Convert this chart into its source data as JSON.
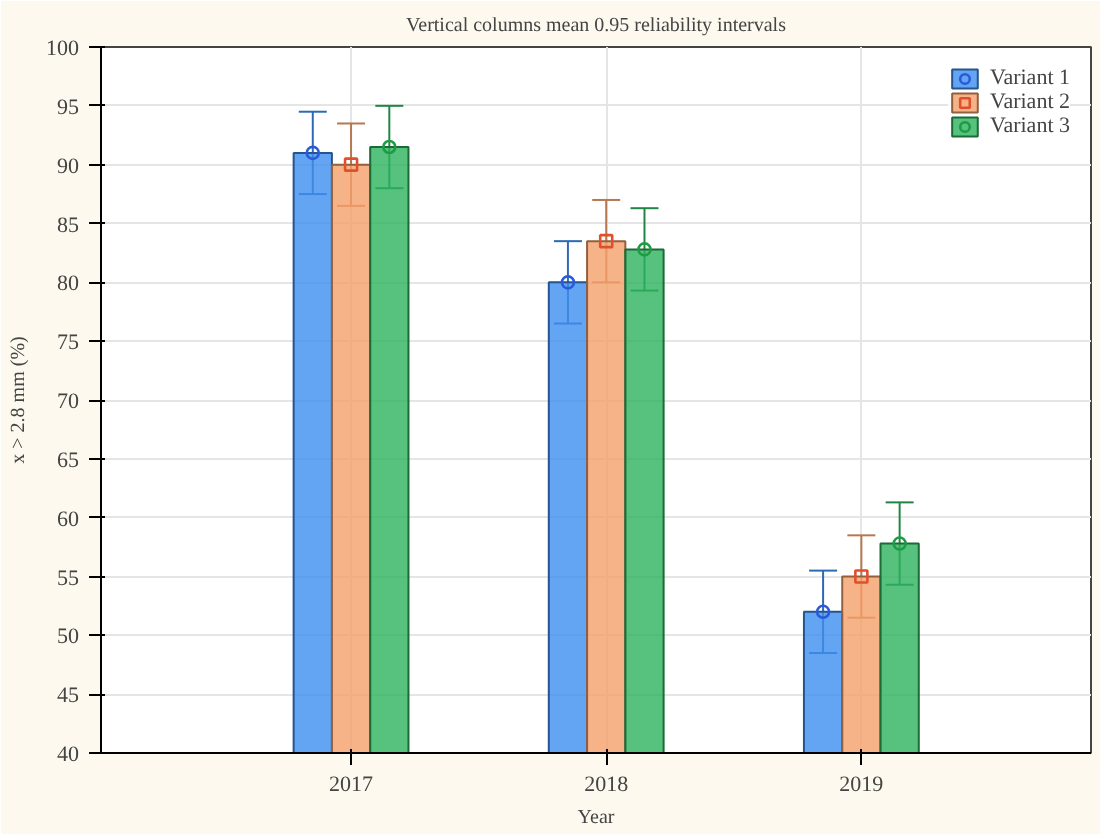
{
  "chart_data": {
    "type": "bar",
    "title": "Vertical columns mean 0.95 reliability intervals",
    "xlabel": "Year",
    "ylabel": "x > 2.8 mm (%)",
    "categories": [
      "2017",
      "2018",
      "2019"
    ],
    "series": [
      {
        "name": "Variant 1",
        "color": "#3d8ef0",
        "values": [
          91,
          80,
          52
        ],
        "errors": [
          [
            87.5,
            94.5
          ],
          [
            76.5,
            83.5
          ],
          [
            48.5,
            55.5
          ]
        ]
      },
      {
        "name": "Variant 2",
        "color": "#f5a06a",
        "values": [
          90,
          83.5,
          55
        ],
        "errors": [
          [
            86.5,
            93.5
          ],
          [
            80,
            87
          ],
          [
            51.5,
            58.5
          ]
        ]
      },
      {
        "name": "Variant 3",
        "color": "#2db35d",
        "values": [
          91.5,
          82.8,
          57.8
        ],
        "errors": [
          [
            88,
            95
          ],
          [
            79.3,
            86.3
          ],
          [
            54.3,
            61.3
          ]
        ]
      },
      {
        "type": "scatter",
        "color": "#2a5ad8",
        "marker": "circle",
        "values": [
          91,
          80,
          52
        ]
      },
      {
        "type": "scatter",
        "color": "#e0502c",
        "marker": "square",
        "values": [
          90,
          83.5,
          55
        ]
      },
      {
        "type": "scatter",
        "color": "#1f9a45",
        "marker": "circle",
        "values": [
          91.5,
          82.8,
          57.8
        ]
      }
    ],
    "ylim": [
      40,
      100
    ],
    "yticks": [
      40,
      45,
      50,
      55,
      60,
      65,
      70,
      75,
      80,
      85,
      90,
      95,
      100
    ],
    "grid": true,
    "legend": "top right"
  }
}
